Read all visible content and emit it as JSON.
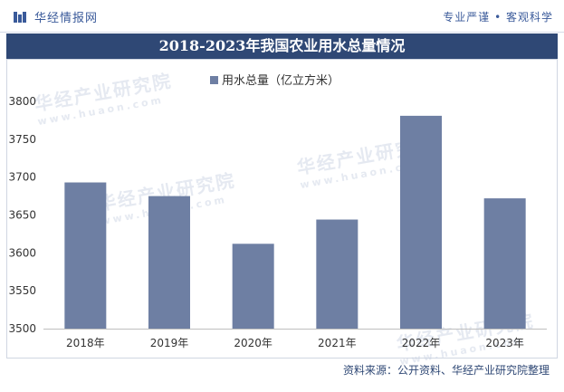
{
  "header": {
    "brand": "华经情报网",
    "slogan": "专业严谨 • 客观科学"
  },
  "footer": {
    "source": "资料来源：公开资料、华经产业研究院整理"
  },
  "watermark": {
    "text": "华经产业研究院",
    "url": "www.huaon.com"
  },
  "colors": {
    "bar": "#6e7fa3",
    "title_bg": "#2f4875",
    "brand": "#3a5a9a"
  },
  "chart_data": {
    "type": "bar",
    "title": "2018-2023年我国农业用水总量情况",
    "legend": {
      "position": "top",
      "entries": [
        "用水总量（亿立方米）"
      ]
    },
    "categories": [
      "2018年",
      "2019年",
      "2020年",
      "2021年",
      "2022年",
      "2023年"
    ],
    "series": [
      {
        "name": "用水总量（亿立方米）",
        "values": [
          3693,
          3675,
          3612,
          3644,
          3781,
          3672
        ]
      }
    ],
    "ylim": [
      3500,
      3800
    ],
    "yticks": [
      3500,
      3550,
      3600,
      3650,
      3700,
      3750,
      3800
    ],
    "grid": false
  }
}
